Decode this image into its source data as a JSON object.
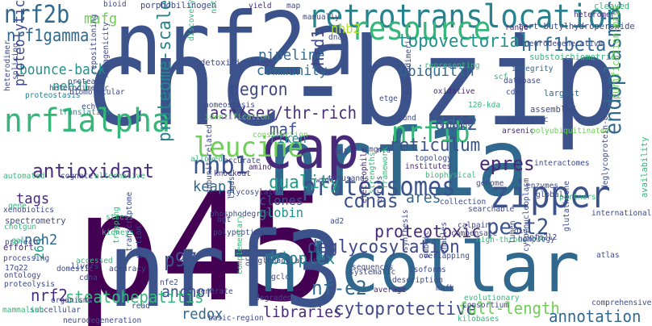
{
  "words": [
    {
      "text": "cnc-bzip",
      "color": "#3b528b"
    },
    {
      "text": "p45",
      "color": "#440154"
    },
    {
      "text": "nrf1a",
      "color": "#31688e"
    },
    {
      "text": "nrf3",
      "color": "#3b528b"
    },
    {
      "text": "n'collar",
      "color": "#31688e"
    },
    {
      "text": "nrf2a",
      "color": "#3b528b"
    },
    {
      "text": "cap",
      "color": "#482878"
    },
    {
      "text": "retrotranslocation",
      "color": "#26828e"
    },
    {
      "text": "resource",
      "color": "#35b779"
    },
    {
      "text": "nrf1alpha",
      "color": "#35b779"
    },
    {
      "text": "leucine",
      "color": "#6ece58"
    },
    {
      "text": "nrf1b",
      "color": "#35b779"
    },
    {
      "text": "antioxidant",
      "color": "#472d7b"
    },
    {
      "text": "proteasomes",
      "color": "#3b528b"
    },
    {
      "text": "zipper",
      "color": "#3b528b"
    },
    {
      "text": "nrf2b",
      "color": "#31688e"
    },
    {
      "text": "topovectorial",
      "color": "#21918c"
    },
    {
      "text": "nrf1beta",
      "color": "#31688e"
    },
    {
      "text": "nrf1gamma",
      "color": "#31688e"
    },
    {
      "text": "nhb2",
      "color": "#b5de2b"
    },
    {
      "text": "mafg",
      "color": "#6ece58"
    },
    {
      "text": "bounce-back",
      "color": "#21918c"
    },
    {
      "text": "pipeline",
      "color": "#31688e"
    },
    {
      "text": "community",
      "color": "#31688e"
    },
    {
      "text": "degron",
      "color": "#3e4989"
    },
    {
      "text": "asn/ser/thr-rich",
      "color": "#472d7b"
    },
    {
      "text": "proteome-scale",
      "color": "#26828e"
    },
    {
      "text": "hrd1",
      "color": "#3e4989"
    },
    {
      "text": "ubiquitin",
      "color": "#31688e"
    },
    {
      "text": "neh21",
      "color": "#1f9e89"
    },
    {
      "text": "maf",
      "color": "#3b528b"
    },
    {
      "text": "proteolytic",
      "color": "#3e4989"
    },
    {
      "text": "reticulum",
      "color": "#3b528b"
    },
    {
      "text": "ddi2",
      "color": "#31688e"
    },
    {
      "text": "endoplasmic",
      "color": "#31688e"
    },
    {
      "text": "nhb1",
      "color": "#3b528b"
    },
    {
      "text": "quality",
      "color": "#1f9e89"
    },
    {
      "text": "keap1",
      "color": "#31688e"
    },
    {
      "text": "tags",
      "color": "#472d7b"
    },
    {
      "text": "epres",
      "color": "#482878"
    },
    {
      "text": "cdnas",
      "color": "#3b528b"
    },
    {
      "text": "ares",
      "color": "#31688e"
    },
    {
      "text": "proteotoxic",
      "color": "#482878"
    },
    {
      "text": "pest2",
      "color": "#3b528b"
    },
    {
      "text": "deglycosylation",
      "color": "#3e4989"
    },
    {
      "text": "nf-e2",
      "color": "#31688e"
    },
    {
      "text": "bioplex",
      "color": "#26828e"
    },
    {
      "text": "globin",
      "color": "#21918c"
    },
    {
      "text": "clones",
      "color": "#3b528b"
    },
    {
      "text": "p97",
      "color": "#3b528b"
    },
    {
      "text": "26s",
      "color": "#1f9e89"
    },
    {
      "text": "nrf2",
      "color": "#472d7b"
    },
    {
      "text": "anchor",
      "color": "#3e4989"
    },
    {
      "text": "neh2",
      "color": "#31688e"
    },
    {
      "text": "redox",
      "color": "#31688e"
    },
    {
      "text": "steatohepatitis",
      "color": "#35b779"
    },
    {
      "text": "libraries",
      "color": "#482878"
    },
    {
      "text": "cytoprotective",
      "color": "#3e4989"
    },
    {
      "text": "full-length",
      "color": "#6ece58"
    },
    {
      "text": "annotation",
      "color": "#31688e"
    },
    {
      "text": "riken",
      "color": "#21918c"
    },
    {
      "text": "detoxification",
      "color": "#3e4989"
    },
    {
      "text": "porphobilinogen",
      "color": "#3e4989"
    },
    {
      "text": "tert-butylhydroperoxide",
      "color": "#3e4989"
    },
    {
      "text": "purification-mass",
      "color": "#6ece58"
    },
    {
      "text": "bioid",
      "color": "#3e4989"
    },
    {
      "text": "yield",
      "color": "#472d7b"
    },
    {
      "text": "cleaved",
      "color": "#35b779"
    },
    {
      "text": "heteromer",
      "color": "#472d7b"
    },
    {
      "text": "range",
      "color": "#472d7b"
    },
    {
      "text": "substoichiometric",
      "color": "#35b779"
    },
    {
      "text": "proteostasis",
      "color": "#26828e"
    },
    {
      "text": "integrity",
      "color": "#31688e"
    },
    {
      "text": "database",
      "color": "#3e4989"
    },
    {
      "text": "cdc4",
      "color": "#3e4989"
    },
    {
      "text": "120-kda",
      "color": "#35b779"
    },
    {
      "text": "largest",
      "color": "#31688e"
    },
    {
      "text": "assembled",
      "color": "#3e4989"
    },
    {
      "text": "cytosolic",
      "color": "#3e4989"
    },
    {
      "text": "arsenic",
      "color": "#472d7b"
    },
    {
      "text": "oxidative",
      "color": "#482878"
    },
    {
      "text": "representing",
      "color": "#35b779"
    },
    {
      "text": "translation",
      "color": "#21918c"
    },
    {
      "text": "protease",
      "color": "#3e4989"
    },
    {
      "text": "biomolecular",
      "color": "#3e4989"
    },
    {
      "text": "repositioning",
      "color": "#3e4989"
    },
    {
      "text": "mutagenicity",
      "color": "#3e4989"
    },
    {
      "text": "homeostasis",
      "color": "#3e4989"
    },
    {
      "text": "construction",
      "color": "#6ece58"
    },
    {
      "text": "identification",
      "color": "#6ece58"
    },
    {
      "text": "allowed",
      "color": "#35b779"
    },
    {
      "text": "accurate",
      "color": "#3e4989"
    },
    {
      "text": "knockout",
      "color": "#472d7b"
    },
    {
      "text": "amino",
      "color": "#482878"
    },
    {
      "text": "automated",
      "color": "#35b779"
    },
    {
      "text": "cognate",
      "color": "#3e4989"
    },
    {
      "text": "alternative",
      "color": "#35b779"
    },
    {
      "text": "glycosylated",
      "color": "#3e4989"
    },
    {
      "text": "polyubiquitinated",
      "color": "#6ece58"
    },
    {
      "text": "interactomes",
      "color": "#3e4989"
    },
    {
      "text": "institutes",
      "color": "#482878"
    },
    {
      "text": "topology",
      "color": "#3e4989"
    },
    {
      "text": "biophysical",
      "color": "#35b779"
    },
    {
      "text": "genome",
      "color": "#3e4989"
    },
    {
      "text": "enzymes",
      "color": "#3e4989"
    },
    {
      "text": "partners",
      "color": "#35b779"
    },
    {
      "text": "international",
      "color": "#3e4989"
    },
    {
      "text": "nfe2l2",
      "color": "#3e4989"
    },
    {
      "text": "dlg",
      "color": "#3e4989"
    },
    {
      "text": "glutathione",
      "color": "#3e4989"
    },
    {
      "text": "deglycoprotein-b",
      "color": "#3e4989"
    },
    {
      "text": "availability",
      "color": "#35b779"
    },
    {
      "text": "electrophile",
      "color": "#482878"
    },
    {
      "text": "thousands",
      "color": "#3e4989"
    },
    {
      "text": "collection",
      "color": "#3e4989"
    },
    {
      "text": "searchable",
      "color": "#3e4989"
    },
    {
      "text": "calpain",
      "color": "#3e4989"
    },
    {
      "text": "compensate",
      "color": "#3e4989"
    },
    {
      "text": "ad1",
      "color": "#3e4989"
    },
    {
      "text": "ad2",
      "color": "#3e4989"
    },
    {
      "text": "ntd",
      "color": "#3e4989"
    },
    {
      "text": "chotgun",
      "color": "#35b779"
    },
    {
      "text": "xenobiotics",
      "color": "#3e4989"
    },
    {
      "text": "stress",
      "color": "#35b779"
    },
    {
      "text": "kidneys",
      "color": "#35b779"
    },
    {
      "text": "spectrometry",
      "color": "#3e4989"
    },
    {
      "text": "project",
      "color": "#3e4989"
    },
    {
      "text": "effort",
      "color": "#482878"
    },
    {
      "text": "processing",
      "color": "#3e4989"
    },
    {
      "text": "17q22",
      "color": "#3e4989"
    },
    {
      "text": "ontology",
      "color": "#3e4989"
    },
    {
      "text": "proteolysis",
      "color": "#3e4989"
    },
    {
      "text": "accuracy",
      "color": "#3e4989"
    },
    {
      "text": "cdna",
      "color": "#3e4989"
    },
    {
      "text": "ogt",
      "color": "#3e4989"
    },
    {
      "text": "polypeptide",
      "color": "#3e4989"
    },
    {
      "text": "gclc",
      "color": "#3e4989"
    },
    {
      "text": "sequences",
      "color": "#3e4989"
    },
    {
      "text": "isoforms",
      "color": "#3e4989"
    },
    {
      "text": "description",
      "color": "#3e4989"
    },
    {
      "text": "average",
      "color": "#482878"
    },
    {
      "text": "mafk",
      "color": "#3e4989"
    },
    {
      "text": "enables",
      "color": "#3e4989"
    },
    {
      "text": "high-throughput",
      "color": "#35b779"
    },
    {
      "text": "homology",
      "color": "#3e4989"
    },
    {
      "text": "lumen",
      "color": "#3e4989"
    },
    {
      "text": "cyto/nucleoplasm",
      "color": "#3e4989"
    },
    {
      "text": "overlapping",
      "color": "#3e4989"
    },
    {
      "text": "atlas",
      "color": "#3e4989"
    },
    {
      "text": "comprehensive",
      "color": "#3e4989"
    },
    {
      "text": "nfe2",
      "color": "#3e4989"
    },
    {
      "text": "generate",
      "color": "#3e4989"
    },
    {
      "text": "read",
      "color": "#3e4989"
    },
    {
      "text": "organisms",
      "color": "#3e4989"
    },
    {
      "text": "subcellular",
      "color": "#3e4989"
    },
    {
      "text": "mammalian",
      "color": "#35b779"
    },
    {
      "text": "degraded",
      "color": "#3e4989"
    },
    {
      "text": "basic-region",
      "color": "#3e4989"
    },
    {
      "text": "o-glcnacylation",
      "color": "#3e4989"
    },
    {
      "text": "phosphodegron",
      "color": "#3e4989"
    },
    {
      "text": "subunit-related",
      "color": "#3e4989"
    },
    {
      "text": "ligase",
      "color": "#3e4989"
    },
    {
      "text": "portion",
      "color": "#3e4989"
    },
    {
      "text": "neurodegeneration",
      "color": "#3e4989"
    },
    {
      "text": "kilobases",
      "color": "#35b779"
    },
    {
      "text": "consortium",
      "color": "#3e4989"
    },
    {
      "text": "evolutionary",
      "color": "#35b779"
    },
    {
      "text": "systematic",
      "color": "#3e4989"
    },
    {
      "text": "splicing",
      "color": "#3e4989"
    },
    {
      "text": "heterodimeric",
      "color": "#3e4989"
    },
    {
      "text": "framework",
      "color": "#35b779"
    },
    {
      "text": "strengths",
      "color": "#35b779"
    },
    {
      "text": "synthesis",
      "color": "#3e4989"
    },
    {
      "text": "public",
      "color": "#3e4989"
    },
    {
      "text": "complementary",
      "color": "#35b779"
    },
    {
      "text": "heterodimer",
      "color": "#3e4989"
    },
    {
      "text": "neurodegenerative",
      "color": "#3e4989"
    },
    {
      "text": "wide",
      "color": "#3e4989"
    },
    {
      "text": "mgc",
      "color": "#3e4989"
    },
    {
      "text": "etge",
      "color": "#3e4989"
    },
    {
      "text": "jund",
      "color": "#3e4989"
    },
    {
      "text": "strands",
      "color": "#3e4989"
    },
    {
      "text": "global",
      "color": "#3e4989"
    },
    {
      "text": "manually",
      "color": "#3e4989"
    },
    {
      "text": "dnas",
      "color": "#3e4989"
    },
    {
      "text": "map",
      "color": "#3e4989"
    },
    {
      "text": "nst",
      "color": "#35b779"
    },
    {
      "text": "ech",
      "color": "#3e4989"
    },
    {
      "text": "scf",
      "color": "#35b779"
    },
    {
      "text": "gal",
      "color": "#35b779"
    },
    {
      "text": "gene",
      "color": "#35b779"
    },
    {
      "text": "trapping",
      "color": "#35b779"
    },
    {
      "text": "transcriptome",
      "color": "#3e4989"
    },
    {
      "text": "accessed",
      "color": "#35b779"
    },
    {
      "text": "domestic",
      "color": "#3e4989"
    },
    {
      "text": "livers",
      "color": "#3e4989"
    },
    {
      "text": "orf",
      "color": "#3e4989"
    },
    {
      "text": "heterodimeric",
      "color": "#3e4989"
    },
    {
      "text": "errors",
      "color": "#3e4989"
    },
    {
      "text": "discovery",
      "color": "#35b779"
    }
  ]
}
